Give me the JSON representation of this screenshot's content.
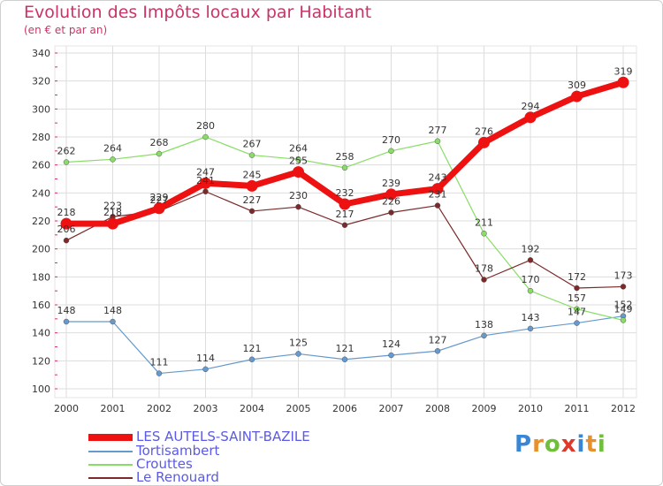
{
  "title": "Evolution des Impôts locaux par Habitant",
  "subtitle": "(en € et par an)",
  "logo": {
    "letters": [
      "P",
      "r",
      "o",
      "x",
      "i",
      "t",
      "i"
    ],
    "colors": [
      "#3a86d6",
      "#e8902a",
      "#6fbf3a",
      "#e0382a",
      "#3a86d6",
      "#e8902a",
      "#6fbf3a"
    ]
  },
  "chart_data": {
    "type": "line",
    "x": [
      "2000",
      "2001",
      "2002",
      "2003",
      "2004",
      "2005",
      "2006",
      "2007",
      "2008",
      "2009",
      "2010",
      "2011",
      "2012"
    ],
    "ylim": [
      100,
      340
    ],
    "yticks": [
      100,
      120,
      140,
      160,
      180,
      200,
      220,
      240,
      260,
      280,
      300,
      320,
      340
    ],
    "grid": true,
    "legend_position": "bottom-left",
    "series": [
      {
        "name": "LES AUTELS-SAINT-BAZILE",
        "color": "#ee1111",
        "values": [
          218,
          218,
          229,
          247,
          245,
          255,
          232,
          239,
          243,
          276,
          294,
          309,
          319
        ]
      },
      {
        "name": "Tortisambert",
        "color": "#6699cc",
        "values": [
          148,
          148,
          111,
          114,
          121,
          125,
          121,
          124,
          127,
          138,
          143,
          147,
          152
        ]
      },
      {
        "name": "Crouttes",
        "color": "#88dd66",
        "values": [
          262,
          264,
          268,
          280,
          267,
          264,
          258,
          270,
          277,
          211,
          170,
          157,
          149
        ]
      },
      {
        "name": "Le Renouard",
        "color": "#7a2a2a",
        "values": [
          206,
          223,
          227,
          241,
          227,
          230,
          217,
          226,
          231,
          178,
          192,
          172,
          173
        ]
      }
    ]
  }
}
